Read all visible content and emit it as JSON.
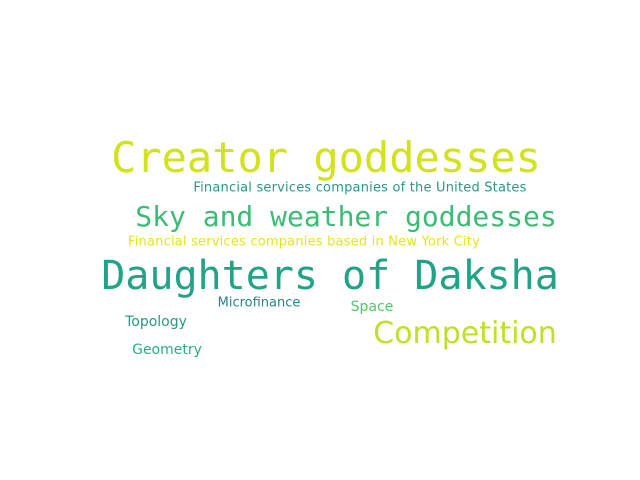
{
  "words": [
    {
      "text": "Creator goddesses",
      "color": "#d2e21b"
    },
    {
      "text": "Financial services companies of the United States",
      "color": "#2a968b"
    },
    {
      "text": "Sky and weather goddesses",
      "color": "#3cbb75"
    },
    {
      "text": "Financial services companies based in New York City",
      "color": "#e5e419"
    },
    {
      "text": "Daughters of Daksha",
      "color": "#20a386"
    },
    {
      "text": "Microfinance",
      "color": "#25838e"
    },
    {
      "text": "Space",
      "color": "#55c667"
    },
    {
      "text": "Topology",
      "color": "#2a968b"
    },
    {
      "text": "Competition",
      "color": "#c2df23"
    },
    {
      "text": "Geometry",
      "color": "#29af7f"
    }
  ]
}
